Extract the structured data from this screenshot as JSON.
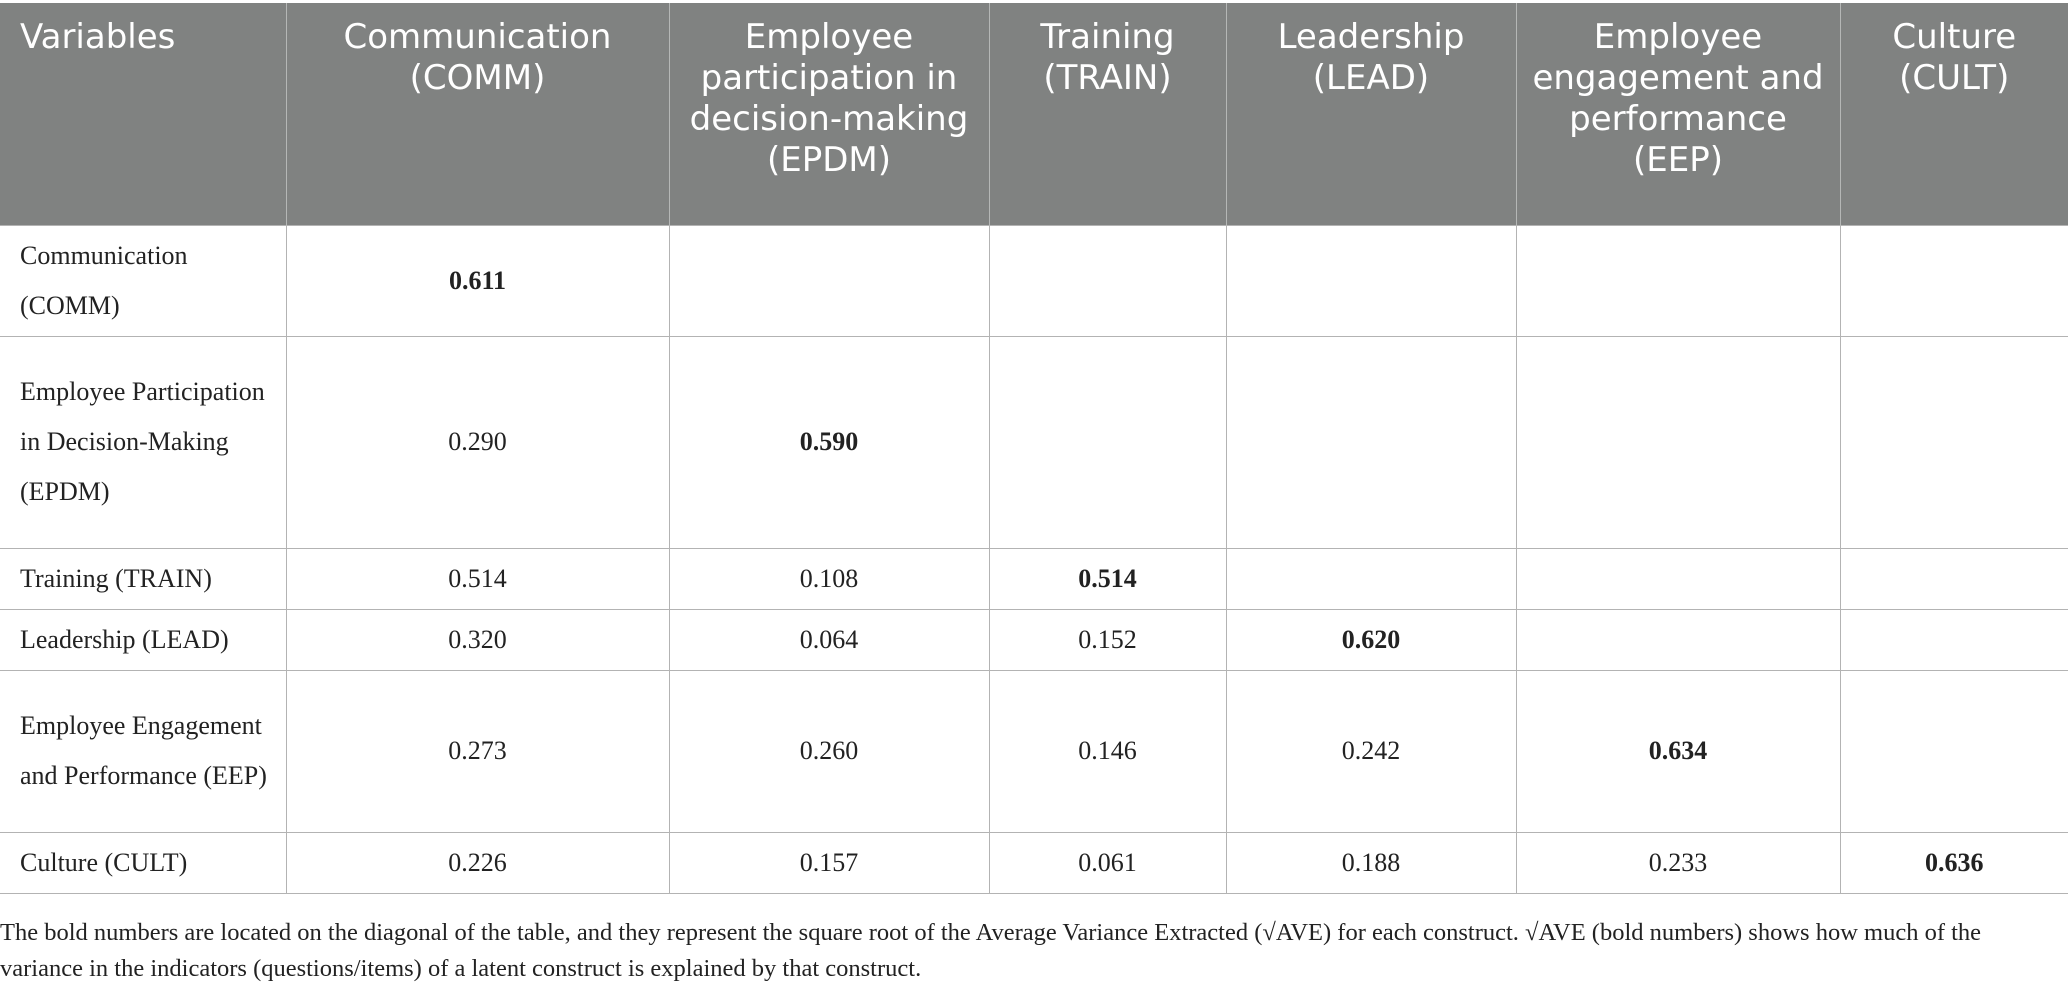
{
  "table": {
    "headers": [
      "Variables",
      "Communication (COMM)",
      "Employee participation in decision-making (EPDM)",
      "Training (TRAIN)",
      "Leadership (LEAD)",
      "Employee engagement and performance (EEP)",
      "Culture (CULT)"
    ],
    "rows": [
      {
        "label": "Communication (COMM)",
        "cells": [
          "0.611",
          "",
          "",
          "",
          "",
          ""
        ]
      },
      {
        "label": "Employee Participation in Decision-Making (EPDM)",
        "cells": [
          "0.290",
          "0.590",
          "",
          "",
          "",
          ""
        ]
      },
      {
        "label": "Training (TRAIN)",
        "cells": [
          "0.514",
          "0.108",
          "0.514",
          "",
          "",
          ""
        ]
      },
      {
        "label": "Leadership (LEAD)",
        "cells": [
          "0.320",
          "0.064",
          "0.152",
          "0.620",
          "",
          ""
        ]
      },
      {
        "label": "Employee Engagement and Performance (EEP)",
        "cells": [
          "0.273",
          "0.260",
          "0.146",
          "0.242",
          "0.634",
          ""
        ]
      },
      {
        "label": "Culture (CULT)",
        "cells": [
          "0.226",
          "0.157",
          "0.061",
          "0.188",
          "0.233",
          "0.636"
        ]
      }
    ]
  },
  "footnote": "The bold numbers are located on the diagonal of the table, and they represent the square root of the Average Variance Extracted (√AVE) for each construct. √AVE (bold numbers) shows how much of the variance in the indicators (questions/items) of a latent construct is explained by that construct."
}
